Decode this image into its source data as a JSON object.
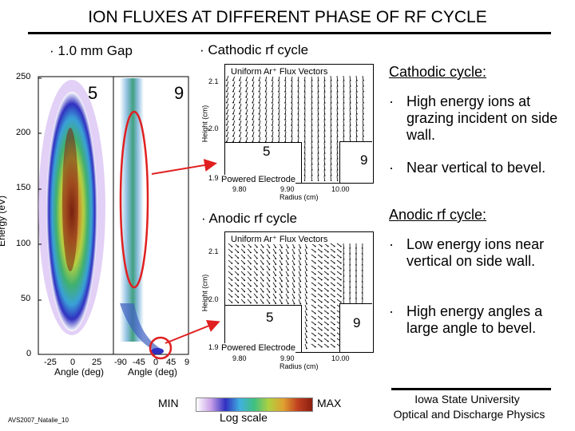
{
  "title": "ION FLUXES AT DIFFERENT PHASE OF RF CYCLE",
  "headers": {
    "gap": "1.0 mm Gap",
    "cathodic": "Cathodic rf cycle",
    "anodic": "Anodic rf cycle"
  },
  "bullet_char": "·",
  "left_plot": {
    "ylabel": "Energy (eV)",
    "xlabel": "Angle (deg)",
    "yticks": [
      "250",
      "200",
      "150",
      "100",
      "50",
      "0"
    ],
    "xticks_a": [
      "-25",
      "0",
      "25"
    ],
    "xticks_b": [
      "-90",
      "-45",
      "0",
      "45",
      "9"
    ],
    "label_a": "5",
    "label_b": "9"
  },
  "vector_plots": [
    {
      "heading": "Uniform Ar⁺ Flux Vectors",
      "ylabel": "Height (cm)",
      "yticks": [
        "2.1",
        "2.0",
        "1.9"
      ],
      "xticks": [
        "9.80",
        "9.90",
        "10.00"
      ],
      "xlabel": "Radius (cm)",
      "electrode": "Powered Electrode",
      "label_a": "5",
      "label_b": "9"
    },
    {
      "heading": "Uniform Ar⁺ Flux Vectors",
      "ylabel": "Height (cm)",
      "yticks": [
        "2.1",
        "2.0",
        "1.9"
      ],
      "xticks": [
        "9.80",
        "9.90",
        "10.00"
      ],
      "xlabel": "Radius (cm)",
      "electrode": "Powered Electrode",
      "label_a": "5",
      "label_b": "9"
    }
  ],
  "cathodic_notes": {
    "heading": "Cathodic cycle:",
    "bullets": [
      "High energy ions at grazing incident on side wall.",
      "Near vertical to bevel."
    ]
  },
  "anodic_notes": {
    "heading": "Anodic rf cycle:",
    "bullets": [
      "Low energy ions near vertical on side wall.",
      "High energy angles a large angle to bevel."
    ]
  },
  "colorbar": {
    "min": "MIN",
    "max": "MAX",
    "scale": "Log scale",
    "colors": [
      "#ffffff",
      "#c8a0e8",
      "#3030c0",
      "#40b0e0",
      "#40c080",
      "#b0d040",
      "#e0a030",
      "#c04020",
      "#8a2010"
    ]
  },
  "footer": {
    "left": "AVS2007_Natalie_10",
    "inst1": "Iowa State University",
    "inst2": "Optical and Discharge Physics"
  },
  "colors": {
    "accent": "#e02020"
  }
}
